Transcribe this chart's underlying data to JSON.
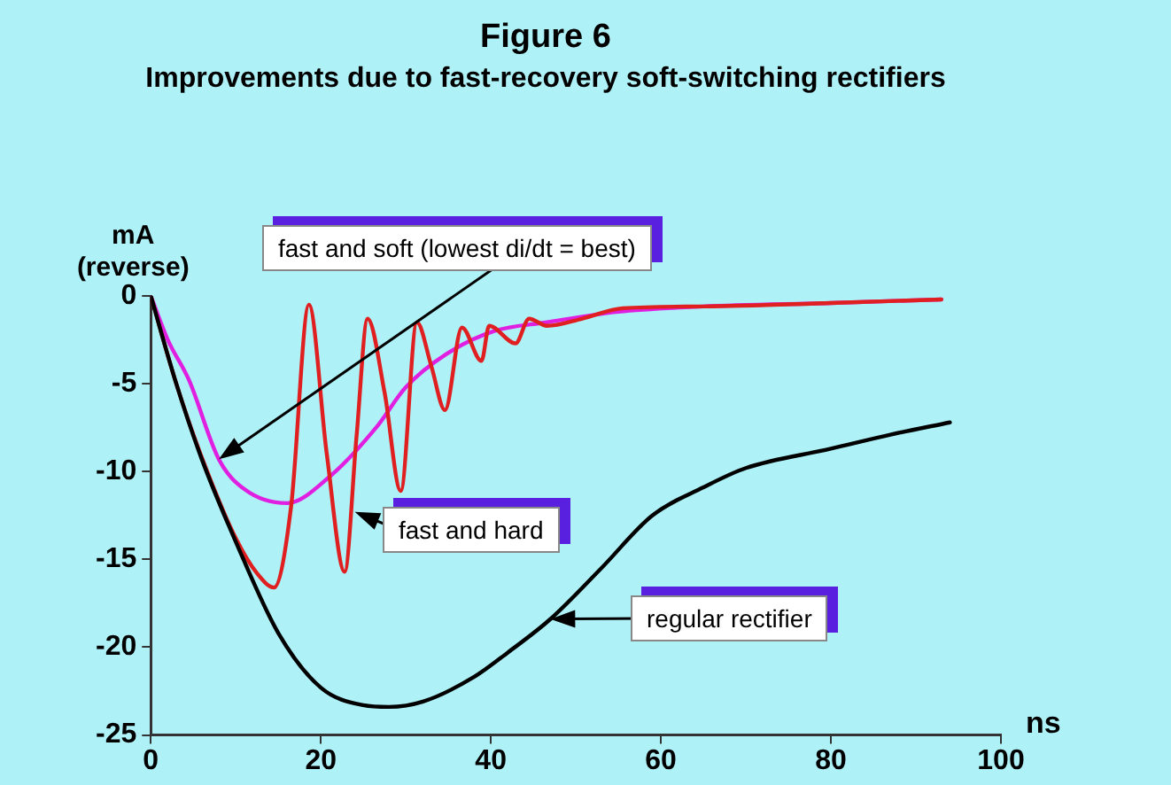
{
  "chart_data": {
    "type": "line",
    "title": "Figure 6",
    "subtitle": "Improvements due to fast-recovery soft-switching rectifiers",
    "xlabel": "ns",
    "ylabel": "mA\n(reverse)",
    "xlim": [
      0,
      100
    ],
    "xticks": [
      0,
      20,
      40,
      60,
      80,
      100
    ],
    "ylim": [
      -25,
      0
    ],
    "yticks": [
      0,
      -5,
      -10,
      -15,
      -20,
      -25
    ],
    "grid": false,
    "legend": false,
    "marker": "none",
    "line_style": "solid",
    "series": [
      {
        "color": "#000000",
        "x": [
          0,
          3,
          6,
          10,
          15,
          20,
          25,
          28,
          32,
          38,
          42,
          47,
          53,
          59,
          65,
          70,
          80,
          87,
          94
        ],
        "values": [
          0,
          -5,
          -9.3,
          -14,
          -19.2,
          -22.3,
          -23.3,
          -23.4,
          -23.1,
          -21.7,
          -20.3,
          -18.4,
          -15.5,
          -12.5,
          -10.9,
          -9.8,
          -8.7,
          -7.9,
          -7.2
        ]
      },
      {
        "color": "#e02020",
        "x": [
          0,
          3,
          6,
          10,
          12.5,
          14.5,
          16.5,
          18.6,
          20.7,
          22.8,
          24.2,
          25.5,
          27.5,
          29.4,
          31.3,
          33,
          34.6,
          36.6,
          38.9,
          39.8,
          42.9,
          44.5,
          46.6,
          50.7,
          55.5,
          65,
          80,
          93
        ],
        "values": [
          0,
          -5,
          -9.2,
          -13.8,
          -15.8,
          -16.6,
          -12,
          -0.5,
          -9,
          -15.7,
          -8,
          -1.3,
          -5.5,
          -11.1,
          -1.5,
          -4,
          -6.5,
          -1.8,
          -3.7,
          -1.7,
          -2.7,
          -1.3,
          -1.7,
          -1.3,
          -0.7,
          -0.6,
          -0.4,
          -0.2
        ]
      },
      {
        "color": "#e020e0",
        "x": [
          0,
          2,
          4.5,
          8,
          11,
          16,
          21,
          26.5,
          30,
          34.8,
          40.4,
          46.6,
          55,
          65,
          80,
          93
        ],
        "values": [
          0,
          -2.5,
          -4.8,
          -9.3,
          -11,
          -11.8,
          -10.3,
          -7.5,
          -5.2,
          -3.3,
          -2,
          -1.5,
          -0.9,
          -0.6,
          -0.4,
          -0.2
        ]
      }
    ],
    "annotations": [
      "fast and soft (lowest di/dt = best)",
      {
        "text": "fast and hard",
        "x": 24,
        "y": -12.3
      },
      "regular rectifier"
    ]
  }
}
